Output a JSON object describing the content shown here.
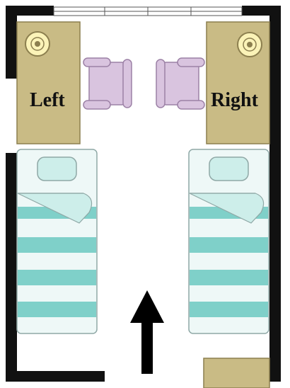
{
  "labels": {
    "left_desk": "Left",
    "right_desk": "Right"
  },
  "icons": {
    "lamp": "lamp-icon",
    "chair": "office-chair-icon",
    "pillow": "pillow-icon",
    "arrow": "arrow-up-icon"
  },
  "colors": {
    "wall": "#111111",
    "desk_fill": "#c9bb85",
    "desk_stroke": "#8c7f4f",
    "lamp_fill": "#fbf3b8",
    "lamp_stroke": "#8c7f4f",
    "chair_fill": "#d9c4df",
    "chair_stroke": "#9c81a6",
    "bed_fill": "#eef8f7",
    "bed_stroke": "#8fa8a6",
    "stripe": "#7fd0c9",
    "sheet": "#cdeeea",
    "arrow": "#000000"
  }
}
